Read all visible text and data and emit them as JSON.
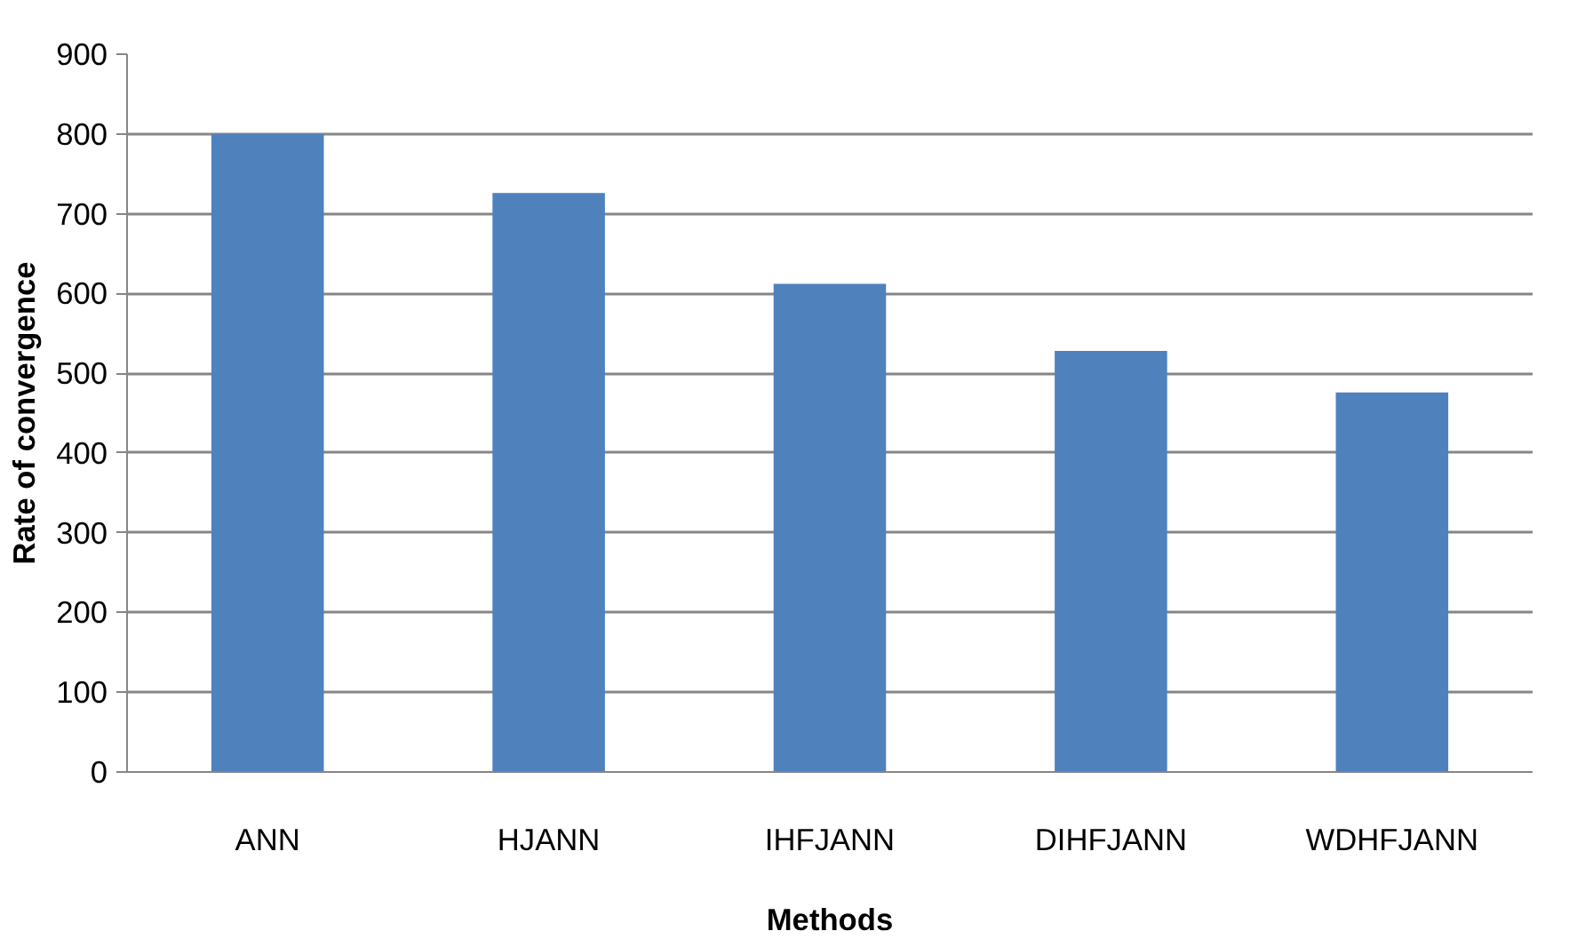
{
  "chart_data": {
    "type": "bar",
    "xlabel": "Methods",
    "ylabel": "Rate of convergence",
    "categories": [
      "ANN",
      "HJANN",
      "IHFJANN",
      "DIHFJANN",
      "WDHFJANN"
    ],
    "values": [
      800,
      726,
      612,
      528,
      476
    ],
    "color": "#4f81bd",
    "ylim": [
      0,
      900
    ],
    "yticks": [
      0,
      100,
      200,
      300,
      400,
      500,
      600,
      700,
      800,
      900
    ],
    "grid": "y"
  }
}
